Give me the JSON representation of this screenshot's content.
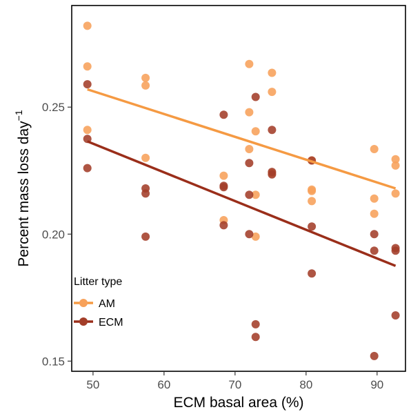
{
  "chart_data": {
    "type": "scatter",
    "title": "",
    "xlabel": "ECM basal area (%)",
    "ylabel": "Percent mass loss day",
    "ylabel_superscript": "−1",
    "xlim": [
      47,
      94
    ],
    "ylim": [
      0.146,
      0.29
    ],
    "x_ticks": [
      50,
      60,
      70,
      80,
      90
    ],
    "y_ticks": [
      0.15,
      0.2,
      0.25
    ],
    "x_tick_labels": [
      "50",
      "60",
      "70",
      "80",
      "90"
    ],
    "y_tick_labels": [
      "0.15",
      "0.20",
      "0.25"
    ],
    "grid": false,
    "legend": {
      "title": "Litter type",
      "position": "bottom-left"
    },
    "series": [
      {
        "name": "AM",
        "color": "#F7A15A",
        "line_color": "#F59A43",
        "trend": {
          "x": [
            49.2,
            92.6
          ],
          "y": [
            0.257,
            0.218
          ]
        },
        "points": [
          [
            49.2,
            0.282
          ],
          [
            49.2,
            0.266
          ],
          [
            49.2,
            0.241
          ],
          [
            57.4,
            0.2615
          ],
          [
            57.4,
            0.2585
          ],
          [
            57.4,
            0.23
          ],
          [
            68.4,
            0.223
          ],
          [
            68.4,
            0.2055
          ],
          [
            72.0,
            0.267
          ],
          [
            72.0,
            0.248
          ],
          [
            72.0,
            0.2335
          ],
          [
            72.9,
            0.2405
          ],
          [
            72.9,
            0.2155
          ],
          [
            72.9,
            0.199
          ],
          [
            75.2,
            0.2635
          ],
          [
            75.2,
            0.256
          ],
          [
            75.2,
            0.224
          ],
          [
            80.8,
            0.229
          ],
          [
            80.8,
            0.2175
          ],
          [
            80.8,
            0.217
          ],
          [
            80.8,
            0.213
          ],
          [
            89.6,
            0.2335
          ],
          [
            89.6,
            0.214
          ],
          [
            89.6,
            0.208
          ],
          [
            92.6,
            0.2295
          ],
          [
            92.6,
            0.227
          ],
          [
            92.6,
            0.216
          ]
        ]
      },
      {
        "name": "ECM",
        "color": "#A33E29",
        "line_color": "#9A2E1A",
        "trend": {
          "x": [
            49.2,
            92.6
          ],
          "y": [
            0.2365,
            0.1875
          ]
        },
        "points": [
          [
            49.2,
            0.259
          ],
          [
            49.2,
            0.2375
          ],
          [
            49.2,
            0.226
          ],
          [
            57.4,
            0.218
          ],
          [
            57.4,
            0.216
          ],
          [
            57.4,
            0.199
          ],
          [
            68.4,
            0.247
          ],
          [
            68.4,
            0.219
          ],
          [
            68.4,
            0.2185
          ],
          [
            68.4,
            0.2035
          ],
          [
            72.0,
            0.228
          ],
          [
            72.0,
            0.2155
          ],
          [
            72.0,
            0.2
          ],
          [
            72.9,
            0.254
          ],
          [
            72.9,
            0.1645
          ],
          [
            72.9,
            0.1595
          ],
          [
            75.2,
            0.241
          ],
          [
            75.2,
            0.2245
          ],
          [
            75.2,
            0.2235
          ],
          [
            80.8,
            0.229
          ],
          [
            80.8,
            0.203
          ],
          [
            80.8,
            0.1845
          ],
          [
            89.6,
            0.2
          ],
          [
            89.6,
            0.1935
          ],
          [
            89.6,
            0.152
          ],
          [
            92.6,
            0.1945
          ],
          [
            92.6,
            0.1935
          ],
          [
            92.6,
            0.168
          ]
        ]
      }
    ]
  }
}
